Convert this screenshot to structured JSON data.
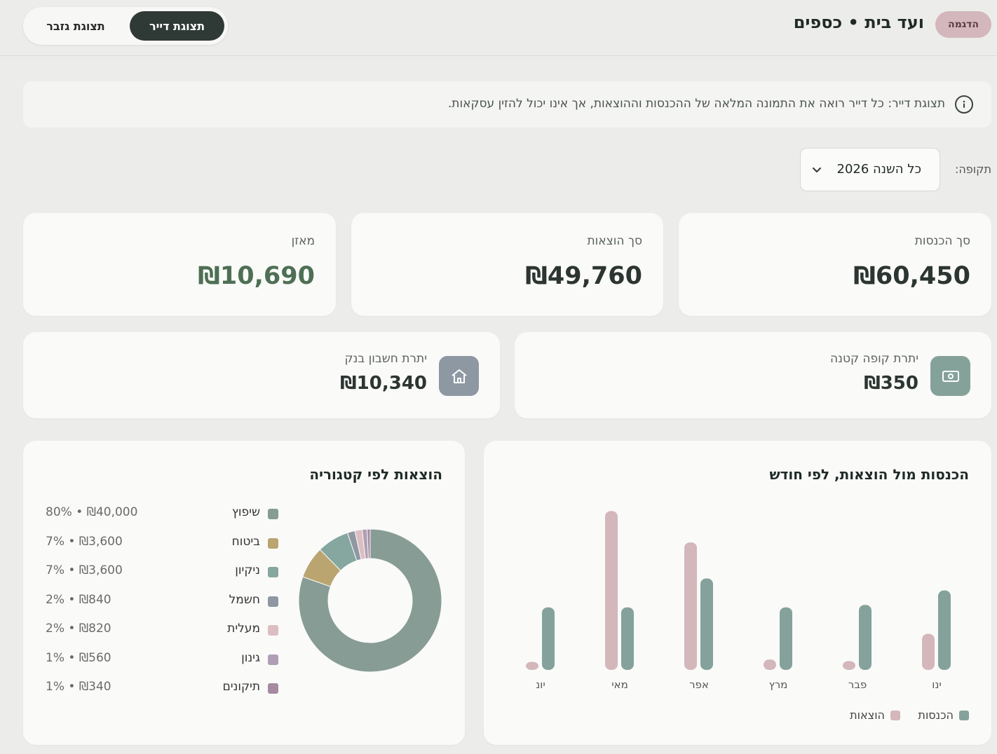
{
  "header": {
    "badge": "הדגמה",
    "title": "ועד בית • כספים",
    "view_resident": "תצוגת דייר",
    "view_treasurer": "תצוגת גזבר"
  },
  "info": {
    "text": "תצוגת דייר: כל דייר רואה את התמונה המלאה של ההכנסות וההוצאות, אך אינו יכול להזין עסקאות.",
    "icon": "info-icon"
  },
  "period": {
    "label": "תקופה:",
    "value": "כל השנה 2026"
  },
  "kpis": {
    "income_label": "סך הכנסות",
    "income_value": "₪60,450",
    "expense_label": "סך הוצאות",
    "expense_value": "₪49,760",
    "balance_label": "מאזן",
    "balance_value": "₪10,690",
    "balance_color": "#4e6f54"
  },
  "balances": {
    "petty_label": "יתרת קופה קטנה",
    "petty_value": "₪350",
    "petty_icon": "cash-icon",
    "petty_color": "#85a29a",
    "bank_label": "יתרת חשבון בנק",
    "bank_value": "₪10,340",
    "bank_icon": "bank-icon",
    "bank_color": "#8e98a3"
  },
  "monthly_chart": {
    "title": "הכנסות מול הוצאות, לפי חודש",
    "legend_income": "הכנסות",
    "legend_expense": "הוצאות",
    "income_color": "#84a29b",
    "expense_color": "#d3b7bb"
  },
  "category_chart": {
    "title": "הוצאות לפי קטגוריה",
    "categories": [
      {
        "name": "שיפוץ",
        "amount": "80% • ₪40,000",
        "value": 40000,
        "color": "#879c94"
      },
      {
        "name": "ביטוח",
        "amount": "7% • ₪3,600",
        "value": 3600,
        "color": "#baa571"
      },
      {
        "name": "ניקיון",
        "amount": "7% • ₪3,600",
        "value": 3600,
        "color": "#86a7a0"
      },
      {
        "name": "חשמל",
        "amount": "2% • ₪840",
        "value": 840,
        "color": "#8f97a3"
      },
      {
        "name": "מעלית",
        "amount": "2% • ₪820",
        "value": 820,
        "color": "#dcbec2"
      },
      {
        "name": "גינון",
        "amount": "1% • ₪560",
        "value": 560,
        "color": "#b09fb4"
      },
      {
        "name": "תיקונים",
        "amount": "1% • ₪340",
        "value": 340,
        "color": "#a68aa2"
      }
    ]
  },
  "chart_data": [
    {
      "type": "bar",
      "title": "הכנסות מול הוצאות, לפי חודש",
      "categories": [
        "ינו",
        "פבר",
        "מרץ",
        "אפר",
        "מאי",
        "יונ"
      ],
      "series": [
        {
          "name": "הכנסות",
          "values": [
            9900,
            8100,
            7800,
            11400,
            7800,
            7800
          ]
        },
        {
          "name": "הוצאות",
          "values": [
            4500,
            1100,
            1300,
            15900,
            19800,
            1000
          ]
        }
      ],
      "ylim": [
        0,
        20000
      ]
    },
    {
      "type": "pie",
      "title": "הוצאות לפי קטגוריה",
      "labels": [
        "שיפוץ",
        "ביטוח",
        "ניקיון",
        "חשמל",
        "מעלית",
        "גינון",
        "תיקונים"
      ],
      "values": [
        40000,
        3600,
        3600,
        840,
        820,
        560,
        340
      ]
    }
  ]
}
